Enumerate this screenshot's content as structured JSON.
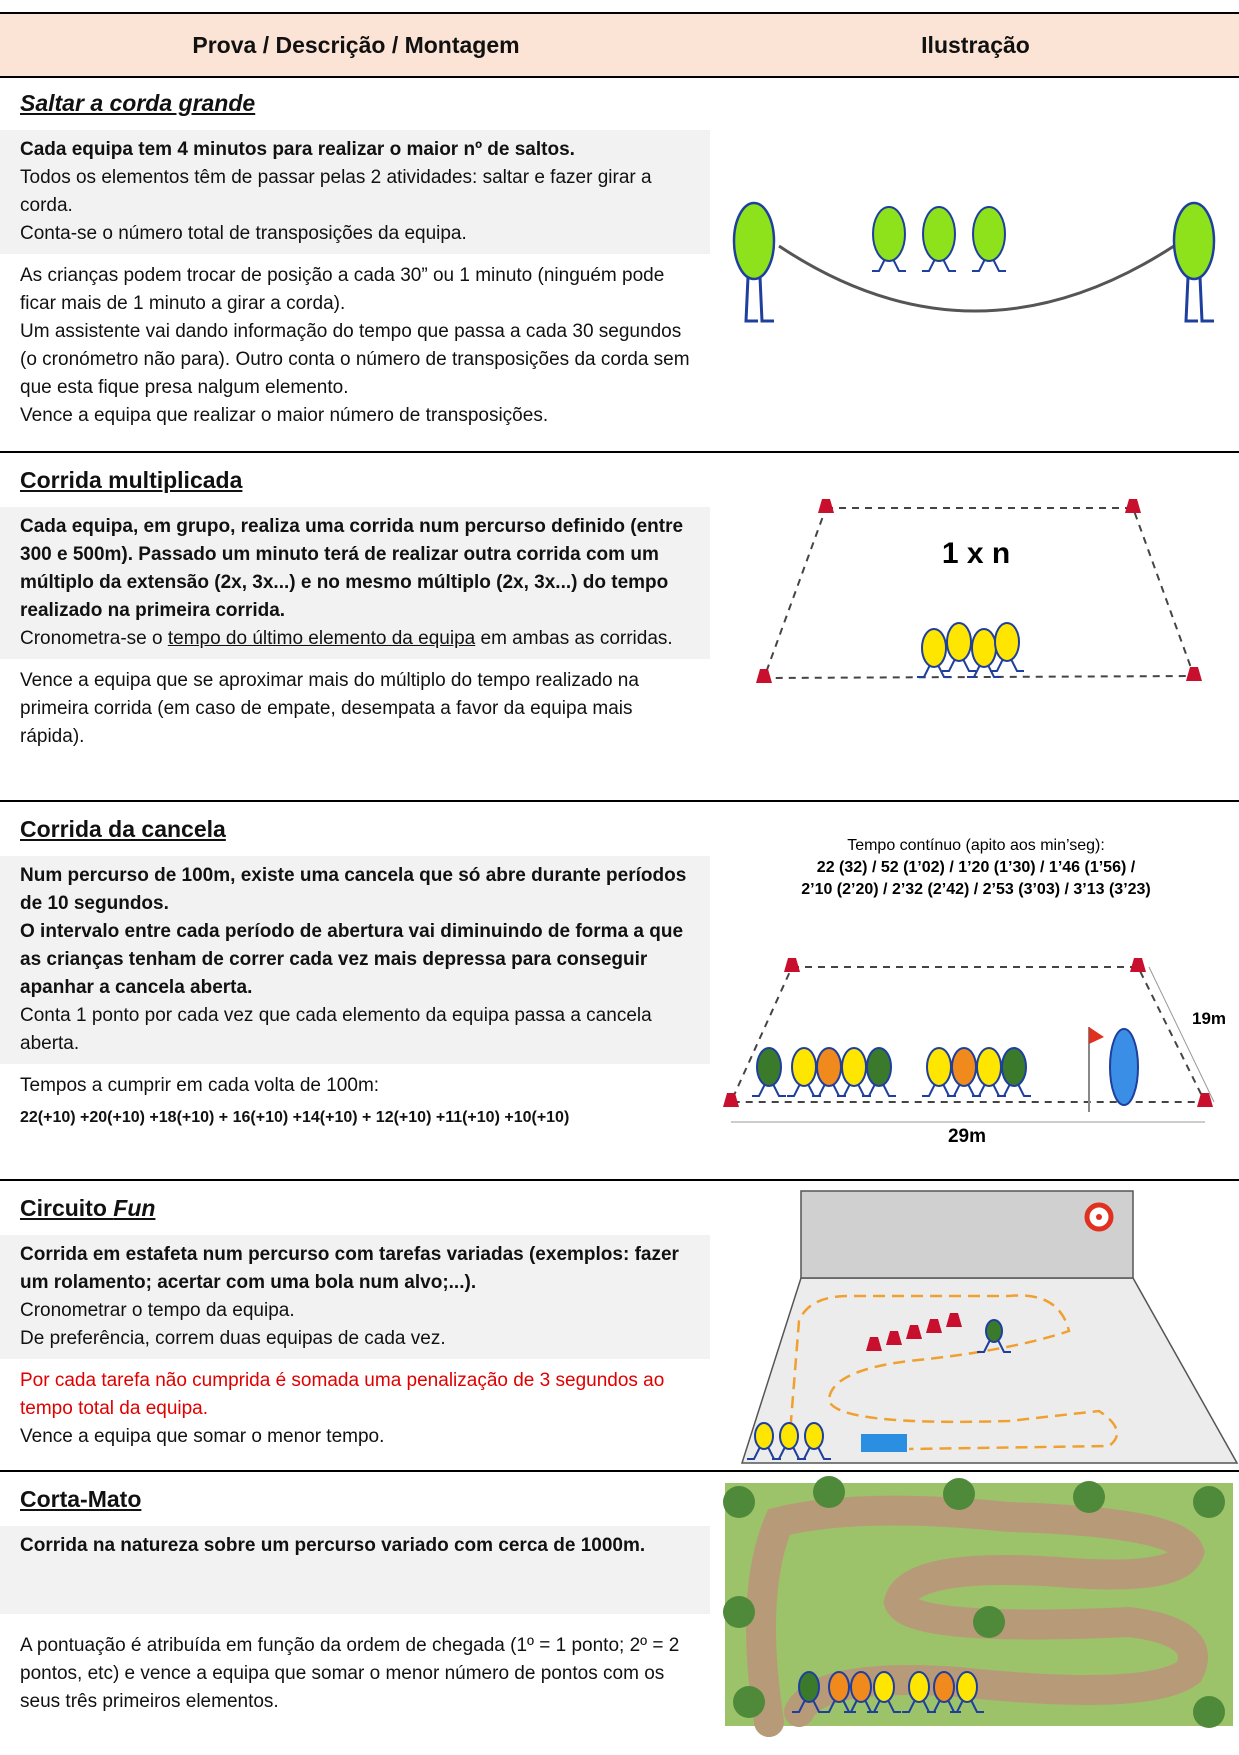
{
  "header": {
    "col1": "Prova / Descrição / Montagem",
    "col2": "Ilustração"
  },
  "sections": [
    {
      "title": "Saltar a corda grande",
      "box": [
        "Cada equipa tem 4 minutos para realizar o maior nº de saltos.",
        "Todos os elementos têm de passar pelas 2 atividades: saltar e fazer girar a corda.",
        "Conta-se o número total de transposições da equipa."
      ],
      "plain": [
        "As crianças podem trocar de posição a cada 30” ou 1 minuto (ninguém pode ficar mais de 1 minuto a girar a corda).",
        "Um assistente vai dando informação do tempo que passa a cada 30 segundos (o cronómetro não para). Outro conta o número de transposições da corda sem que esta fique presa nalgum elemento.",
        "Vence a equipa que realizar o maior número de transposições."
      ]
    },
    {
      "title": "Corrida multiplicada",
      "box": [
        "Cada equipa, em grupo, realiza uma corrida num percurso definido (entre 300 e 500m). Passado um minuto terá de realizar outra corrida com um múltiplo da extensão (2x, 3x...) e no mesmo múltiplo (2x, 3x...) do tempo realizado na primeira corrida.",
        [
          "Cronometra-se o ",
          "tempo do último elemento da equipa",
          " em ambas as corridas."
        ]
      ],
      "plain": [
        "Vence a equipa que se aproximar mais do múltiplo do tempo realizado na primeira corrida (em caso de empate, desempata a favor da equipa mais rápida)."
      ],
      "illustration": {
        "label": "1 x n"
      }
    },
    {
      "title": "Corrida da cancela",
      "box": [
        "Num percurso de 100m, existe uma cancela que só abre durante períodos de 10 segundos.",
        "O intervalo entre cada período de abertura vai diminuindo de forma a que as crianças tenham de correr cada vez mais depressa para conseguir apanhar a cancela aberta.",
        "Conta 1 ponto por cada vez que cada elemento da equipa passa a cancela aberta."
      ],
      "plain": [
        "Tempos a cumprir em cada volta de 100m:",
        "22(+10) +20(+10) +18(+10) + 16(+10) +14(+10) + 12(+10) +11(+10) +10(+10)"
      ],
      "illustration": {
        "caption": "Tempo contínuo (apito aos min’seg):",
        "times": [
          "22 (32) / 52 (1’02) / 1’20 (1’30) / 1’46 (1’56) /",
          "2’10 (2’20) / 2’32 (2’42) / 2’53 (3’03) / 3’13 (3’23)"
        ],
        "width": "19m",
        "length": "29m"
      }
    },
    {
      "title": [
        "Circuito ",
        "Fun"
      ],
      "box": [
        "Corrida em estafeta num percurso com tarefas variadas (exemplos: fazer um rolamento; acertar com uma bola num alvo;...).",
        "Cronometrar o tempo da equipa.",
        "De preferência, correm duas equipas de cada vez."
      ],
      "plain": [
        "Por cada tarefa não cumprida é somada uma penalização de 3 segundos ao tempo total da equipa.",
        "Vence a equipa que somar o menor tempo."
      ]
    },
    {
      "title": "Corta-Mato",
      "box": [
        "Corrida na natureza sobre um percurso variado com cerca de 1000m."
      ],
      "plain": [
        "A pontuação é atribuída em função da ordem de chegada (1º = 1 ponto; 2º = 2 pontos, etc) e vence a equipa que somar o menor número de pontos com os seus três primeiros elementos."
      ]
    }
  ]
}
